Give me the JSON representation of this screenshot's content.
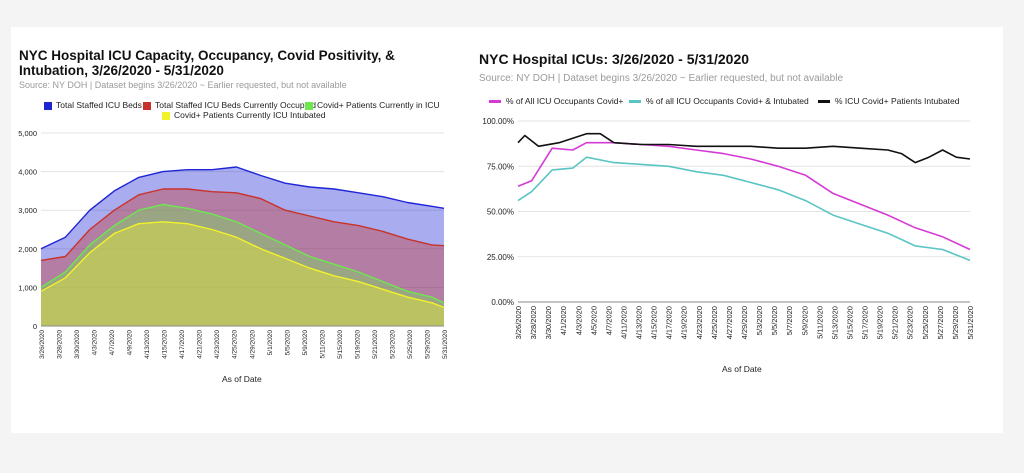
{
  "chart_data": [
    {
      "type": "area",
      "title": "NYC Hospital ICU Capacity, Occupancy, Covid Positivity, & Intubation, 3/26/2020 - 5/31/2020",
      "subtitle": "Source: NY DOH | Dataset begins 3/26/2020 ~ Earlier requested, but not available",
      "xlabel": "As of Date",
      "ylabel": "",
      "ylim": [
        0,
        5000
      ],
      "yticks": [
        "0",
        "1,000",
        "2,000",
        "3,000",
        "4,000",
        "5,000"
      ],
      "xticks": [
        "3/26/2020",
        "3/28/2020",
        "3/30/2020",
        "4/3/2020",
        "4/7/2020",
        "4/9/2020",
        "4/13/2020",
        "4/15/2020",
        "4/17/2020",
        "4/21/2020",
        "4/23/2020",
        "4/25/2020",
        "4/29/2020",
        "5/1/2020",
        "5/5/2020",
        "5/9/2020",
        "5/11/2020",
        "5/15/2020",
        "5/19/2020",
        "5/21/2020",
        "5/23/2020",
        "5/25/2020",
        "5/29/2020",
        "5/31/2020"
      ],
      "legend_position": "top",
      "x_start": "2020-03-26",
      "x_end": "2020-05-31",
      "series": [
        {
          "name": "Total Staffed ICU Beds",
          "color": "#1e25d6",
          "points": [
            [
              "2020-03-26",
              2000
            ],
            [
              "2020-03-30",
              2300
            ],
            [
              "2020-04-03",
              3000
            ],
            [
              "2020-04-07",
              3500
            ],
            [
              "2020-04-11",
              3850
            ],
            [
              "2020-04-15",
              4000
            ],
            [
              "2020-04-19",
              4050
            ],
            [
              "2020-04-23",
              4050
            ],
            [
              "2020-04-27",
              4120
            ],
            [
              "2020-05-01",
              3900
            ],
            [
              "2020-05-05",
              3700
            ],
            [
              "2020-05-09",
              3600
            ],
            [
              "2020-05-13",
              3550
            ],
            [
              "2020-05-17",
              3450
            ],
            [
              "2020-05-21",
              3350
            ],
            [
              "2020-05-25",
              3200
            ],
            [
              "2020-05-29",
              3100
            ],
            [
              "2020-05-31",
              3050
            ]
          ]
        },
        {
          "name": "Total Staffed ICU Beds Currently Occupied",
          "color": "#c9322b",
          "points": [
            [
              "2020-03-26",
              1700
            ],
            [
              "2020-03-30",
              1800
            ],
            [
              "2020-04-03",
              2500
            ],
            [
              "2020-04-07",
              3000
            ],
            [
              "2020-04-11",
              3400
            ],
            [
              "2020-04-15",
              3550
            ],
            [
              "2020-04-19",
              3550
            ],
            [
              "2020-04-23",
              3480
            ],
            [
              "2020-04-27",
              3450
            ],
            [
              "2020-05-01",
              3300
            ],
            [
              "2020-05-05",
              3000
            ],
            [
              "2020-05-09",
              2850
            ],
            [
              "2020-05-13",
              2700
            ],
            [
              "2020-05-17",
              2600
            ],
            [
              "2020-05-21",
              2450
            ],
            [
              "2020-05-25",
              2250
            ],
            [
              "2020-05-29",
              2100
            ],
            [
              "2020-05-31",
              2080
            ]
          ]
        },
        {
          "name": "Covid+ Patients Currently in ICU",
          "color": "#6ee84f",
          "points": [
            [
              "2020-03-26",
              1000
            ],
            [
              "2020-03-30",
              1400
            ],
            [
              "2020-04-03",
              2100
            ],
            [
              "2020-04-07",
              2600
            ],
            [
              "2020-04-11",
              3000
            ],
            [
              "2020-04-15",
              3150
            ],
            [
              "2020-04-19",
              3050
            ],
            [
              "2020-04-23",
              2900
            ],
            [
              "2020-04-27",
              2700
            ],
            [
              "2020-05-01",
              2400
            ],
            [
              "2020-05-05",
              2100
            ],
            [
              "2020-05-09",
              1800
            ],
            [
              "2020-05-13",
              1600
            ],
            [
              "2020-05-17",
              1400
            ],
            [
              "2020-05-21",
              1150
            ],
            [
              "2020-05-25",
              900
            ],
            [
              "2020-05-29",
              750
            ],
            [
              "2020-05-31",
              600
            ]
          ]
        },
        {
          "name": "Covid+ Patients Currently ICU Intubated",
          "color": "#f2f22a",
          "points": [
            [
              "2020-03-26",
              900
            ],
            [
              "2020-03-30",
              1250
            ],
            [
              "2020-04-03",
              1900
            ],
            [
              "2020-04-07",
              2400
            ],
            [
              "2020-04-11",
              2650
            ],
            [
              "2020-04-15",
              2700
            ],
            [
              "2020-04-19",
              2650
            ],
            [
              "2020-04-23",
              2500
            ],
            [
              "2020-04-27",
              2300
            ],
            [
              "2020-05-01",
              2000
            ],
            [
              "2020-05-05",
              1750
            ],
            [
              "2020-05-09",
              1500
            ],
            [
              "2020-05-13",
              1300
            ],
            [
              "2020-05-17",
              1150
            ],
            [
              "2020-05-21",
              950
            ],
            [
              "2020-05-25",
              750
            ],
            [
              "2020-05-29",
              600
            ],
            [
              "2020-05-31",
              480
            ]
          ]
        }
      ]
    },
    {
      "type": "line",
      "title": "NYC Hospital ICUs: 3/26/2020 - 5/31/2020",
      "subtitle": "Source: NY DOH | Dataset begins 3/26/2020 ~ Earlier requested, but not available",
      "xlabel": "As of Date",
      "ylabel": "",
      "ylim": [
        0,
        100
      ],
      "yticks": [
        "0.00%",
        "25.00%",
        "50.00%",
        "75.00%",
        "100.00%"
      ],
      "xticks": [
        "3/26/2020",
        "3/28/2020",
        "3/30/2020",
        "4/1/2020",
        "4/3/2020",
        "4/5/2020",
        "4/7/2020",
        "4/11/2020",
        "4/13/2020",
        "4/15/2020",
        "4/17/2020",
        "4/19/2020",
        "4/23/2020",
        "4/25/2020",
        "4/27/2020",
        "4/29/2020",
        "5/3/2020",
        "5/5/2020",
        "5/7/2020",
        "5/9/2020",
        "5/11/2020",
        "5/13/2020",
        "5/15/2020",
        "5/17/2020",
        "5/19/2020",
        "5/21/2020",
        "5/23/2020",
        "5/25/2020",
        "5/27/2020",
        "5/29/2020",
        "5/31/2020"
      ],
      "legend_position": "top",
      "x_start": "2020-03-26",
      "x_end": "2020-05-31",
      "series": [
        {
          "name": "% of All ICU Occupants Covid+",
          "color": "#d63ad6",
          "points": [
            [
              "2020-03-26",
              64
            ],
            [
              "2020-03-28",
              67
            ],
            [
              "2020-03-31",
              85
            ],
            [
              "2020-04-03",
              84
            ],
            [
              "2020-04-05",
              88
            ],
            [
              "2020-04-09",
              88
            ],
            [
              "2020-04-13",
              87
            ],
            [
              "2020-04-17",
              86
            ],
            [
              "2020-04-21",
              84
            ],
            [
              "2020-04-25",
              82
            ],
            [
              "2020-04-29",
              79
            ],
            [
              "2020-05-03",
              75
            ],
            [
              "2020-05-07",
              70
            ],
            [
              "2020-05-11",
              60
            ],
            [
              "2020-05-15",
              54
            ],
            [
              "2020-05-19",
              48
            ],
            [
              "2020-05-23",
              41
            ],
            [
              "2020-05-27",
              36
            ],
            [
              "2020-05-31",
              29
            ]
          ]
        },
        {
          "name": "% of all ICU Occupants Covid+ & Intubated",
          "color": "#5bc4c4",
          "points": [
            [
              "2020-03-26",
              56
            ],
            [
              "2020-03-28",
              61
            ],
            [
              "2020-03-31",
              73
            ],
            [
              "2020-04-03",
              74
            ],
            [
              "2020-04-05",
              80
            ],
            [
              "2020-04-09",
              77
            ],
            [
              "2020-04-13",
              76
            ],
            [
              "2020-04-17",
              75
            ],
            [
              "2020-04-21",
              72
            ],
            [
              "2020-04-25",
              70
            ],
            [
              "2020-04-29",
              66
            ],
            [
              "2020-05-03",
              62
            ],
            [
              "2020-05-07",
              56
            ],
            [
              "2020-05-11",
              48
            ],
            [
              "2020-05-15",
              43
            ],
            [
              "2020-05-19",
              38
            ],
            [
              "2020-05-23",
              31
            ],
            [
              "2020-05-27",
              29
            ],
            [
              "2020-05-31",
              23
            ]
          ]
        },
        {
          "name": "% ICU Covid+ Patients Intubated",
          "color": "#111111",
          "points": [
            [
              "2020-03-26",
              88
            ],
            [
              "2020-03-27",
              92
            ],
            [
              "2020-03-29",
              86
            ],
            [
              "2020-04-01",
              88
            ],
            [
              "2020-04-05",
              93
            ],
            [
              "2020-04-07",
              93
            ],
            [
              "2020-04-09",
              88
            ],
            [
              "2020-04-13",
              87
            ],
            [
              "2020-04-17",
              87
            ],
            [
              "2020-04-21",
              86
            ],
            [
              "2020-04-25",
              86
            ],
            [
              "2020-04-29",
              86
            ],
            [
              "2020-05-03",
              85
            ],
            [
              "2020-05-07",
              85
            ],
            [
              "2020-05-11",
              86
            ],
            [
              "2020-05-15",
              85
            ],
            [
              "2020-05-19",
              84
            ],
            [
              "2020-05-21",
              82
            ],
            [
              "2020-05-23",
              77
            ],
            [
              "2020-05-25",
              80
            ],
            [
              "2020-05-27",
              84
            ],
            [
              "2020-05-29",
              80
            ],
            [
              "2020-05-31",
              79
            ]
          ]
        }
      ]
    }
  ]
}
